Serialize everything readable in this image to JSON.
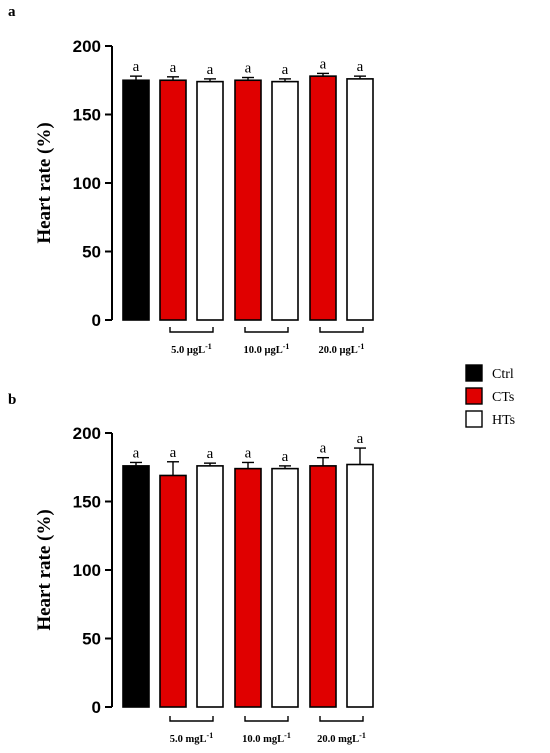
{
  "colors": {
    "Ctrl": "#000000",
    "CTs": "#e00000",
    "HTs": "#ffffff"
  },
  "legend": [
    {
      "name": "Ctrl",
      "color": "#000000"
    },
    {
      "name": "CTs",
      "color": "#e00000"
    },
    {
      "name": "HTs",
      "color": "#ffffff"
    }
  ],
  "chart_data": [
    {
      "type": "bar",
      "panel": "a",
      "ylabel": "Heart rate (%)",
      "ylim": [
        0,
        200
      ],
      "yticks": [
        0,
        50,
        100,
        150,
        200
      ],
      "bars": [
        {
          "series": "Ctrl",
          "value": 175,
          "error": 3,
          "label": "a"
        },
        {
          "series": "CTs",
          "value": 175,
          "error": 2.5,
          "label": "a"
        },
        {
          "series": "HTs",
          "value": 174,
          "error": 2,
          "label": "a"
        },
        {
          "series": "CTs",
          "value": 175,
          "error": 2,
          "label": "a"
        },
        {
          "series": "HTs",
          "value": 174,
          "error": 2,
          "label": "a"
        },
        {
          "series": "CTs",
          "value": 178,
          "error": 2,
          "label": "a"
        },
        {
          "series": "HTs",
          "value": 176,
          "error": 2,
          "label": "a"
        }
      ],
      "groups": [
        {
          "label": "5.0 μgL",
          "sup": "-1",
          "bars": [
            1,
            2
          ]
        },
        {
          "label": "10.0 μgL",
          "sup": "-1",
          "bars": [
            3,
            4
          ]
        },
        {
          "label": "20.0 μgL",
          "sup": "-1",
          "bars": [
            5,
            6
          ]
        }
      ]
    },
    {
      "type": "bar",
      "panel": "b",
      "ylabel": "Heart rate (%)",
      "ylim": [
        0,
        200
      ],
      "yticks": [
        0,
        50,
        100,
        150,
        200
      ],
      "bars": [
        {
          "series": "Ctrl",
          "value": 176,
          "error": 2.5,
          "label": "a"
        },
        {
          "series": "CTs",
          "value": 169,
          "error": 10,
          "label": "a"
        },
        {
          "series": "HTs",
          "value": 176,
          "error": 2,
          "label": "a"
        },
        {
          "series": "CTs",
          "value": 174,
          "error": 4.5,
          "label": "a"
        },
        {
          "series": "HTs",
          "value": 174,
          "error": 2,
          "label": "a"
        },
        {
          "series": "CTs",
          "value": 176,
          "error": 6,
          "label": "a"
        },
        {
          "series": "HTs",
          "value": 177,
          "error": 12,
          "label": "a"
        }
      ],
      "groups": [
        {
          "label": "5.0 mgL",
          "sup": "-1",
          "bars": [
            1,
            2
          ]
        },
        {
          "label": "10.0 mgL",
          "sup": "-1",
          "bars": [
            3,
            4
          ]
        },
        {
          "label": "20.0 mgL",
          "sup": "-1",
          "bars": [
            5,
            6
          ]
        }
      ]
    }
  ]
}
